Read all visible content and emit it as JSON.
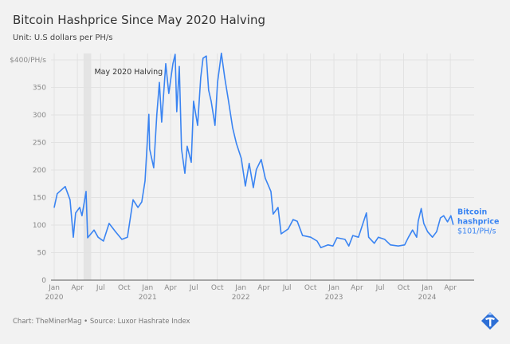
{
  "title": "Bitcoin Hashprice Since May 2020 Halving",
  "subtitle": "Unit: U.S dollars per PH/s",
  "footer": "Chart: TheMinerMag • Source: Luxor Hashrate Index",
  "colors": {
    "line": "#3a84f2",
    "background": "#f2f2f2",
    "grid": "#e2e2e2",
    "halving_band": "#e4e4e4"
  },
  "chart_data": {
    "type": "line",
    "title": "Bitcoin Hashprice Since May 2020 Halving",
    "ylabel": "",
    "xlabel": "",
    "ylim": [
      0,
      400
    ],
    "xlim": [
      "2020-01-01",
      "2024-05-01"
    ],
    "grid": true,
    "y_ticks": [
      {
        "value": 0,
        "label": "0"
      },
      {
        "value": 50,
        "label": "50"
      },
      {
        "value": 100,
        "label": "100"
      },
      {
        "value": 150,
        "label": "150"
      },
      {
        "value": 200,
        "label": "200"
      },
      {
        "value": 250,
        "label": "250"
      },
      {
        "value": 300,
        "label": "300"
      },
      {
        "value": 350,
        "label": "350"
      },
      {
        "value": 400,
        "label": "$400/PH/s"
      }
    ],
    "x_ticks": [
      {
        "date": "2020-01-01",
        "label": "Jan",
        "year": "2020"
      },
      {
        "date": "2020-04-01",
        "label": "Apr",
        "year": ""
      },
      {
        "date": "2020-07-01",
        "label": "Jul",
        "year": ""
      },
      {
        "date": "2020-10-01",
        "label": "Oct",
        "year": ""
      },
      {
        "date": "2021-01-01",
        "label": "Jan",
        "year": "2021"
      },
      {
        "date": "2021-04-01",
        "label": "Apr",
        "year": ""
      },
      {
        "date": "2021-07-01",
        "label": "Jul",
        "year": ""
      },
      {
        "date": "2021-10-01",
        "label": "Oct",
        "year": ""
      },
      {
        "date": "2022-01-01",
        "label": "Jan",
        "year": "2022"
      },
      {
        "date": "2022-04-01",
        "label": "Apr",
        "year": ""
      },
      {
        "date": "2022-07-01",
        "label": "Jul",
        "year": ""
      },
      {
        "date": "2022-10-01",
        "label": "Oct",
        "year": ""
      },
      {
        "date": "2023-01-01",
        "label": "Jan",
        "year": "2023"
      },
      {
        "date": "2023-04-01",
        "label": "Apr",
        "year": ""
      },
      {
        "date": "2023-07-01",
        "label": "Jul",
        "year": ""
      },
      {
        "date": "2023-10-01",
        "label": "Oct",
        "year": ""
      },
      {
        "date": "2024-01-01",
        "label": "Jan",
        "year": "2024"
      },
      {
        "date": "2024-04-01",
        "label": "Apr",
        "year": ""
      }
    ],
    "annotation": {
      "label": "May 2020 Halving",
      "start": "2020-04-25",
      "end": "2020-05-25"
    },
    "series": [
      {
        "name": "Bitcoin hashprice",
        "end_label": "$101/PH/s",
        "points": [
          [
            "2020-01-01",
            132
          ],
          [
            "2020-01-13",
            157
          ],
          [
            "2020-02-13",
            170
          ],
          [
            "2020-03-03",
            146
          ],
          [
            "2020-03-16",
            78
          ],
          [
            "2020-03-25",
            122
          ],
          [
            "2020-04-10",
            132
          ],
          [
            "2020-04-19",
            117
          ],
          [
            "2020-05-05",
            161
          ],
          [
            "2020-05-11",
            77
          ],
          [
            "2020-06-05",
            91
          ],
          [
            "2020-06-21",
            78
          ],
          [
            "2020-07-12",
            71
          ],
          [
            "2020-08-03",
            103
          ],
          [
            "2020-08-28",
            88
          ],
          [
            "2020-09-22",
            74
          ],
          [
            "2020-10-14",
            78
          ],
          [
            "2020-11-05",
            146
          ],
          [
            "2020-11-24",
            132
          ],
          [
            "2020-12-09",
            142
          ],
          [
            "2020-12-22",
            180
          ],
          [
            "2021-01-06",
            301
          ],
          [
            "2021-01-09",
            238
          ],
          [
            "2021-01-25",
            204
          ],
          [
            "2021-02-06",
            301
          ],
          [
            "2021-02-16",
            359
          ],
          [
            "2021-02-25",
            287
          ],
          [
            "2021-03-13",
            393
          ],
          [
            "2021-03-25",
            339
          ],
          [
            "2021-04-10",
            393
          ],
          [
            "2021-04-19",
            410
          ],
          [
            "2021-04-25",
            306
          ],
          [
            "2021-05-05",
            388
          ],
          [
            "2021-05-14",
            238
          ],
          [
            "2021-05-27",
            194
          ],
          [
            "2021-06-05",
            243
          ],
          [
            "2021-06-21",
            214
          ],
          [
            "2021-06-30",
            325
          ],
          [
            "2021-07-16",
            281
          ],
          [
            "2021-07-28",
            368
          ],
          [
            "2021-08-06",
            403
          ],
          [
            "2021-08-19",
            407
          ],
          [
            "2021-08-28",
            345
          ],
          [
            "2021-09-07",
            325
          ],
          [
            "2021-09-22",
            281
          ],
          [
            "2021-10-02",
            359
          ],
          [
            "2021-10-17",
            412
          ],
          [
            "2021-10-30",
            368
          ],
          [
            "2021-11-14",
            325
          ],
          [
            "2021-11-30",
            277
          ],
          [
            "2021-12-15",
            248
          ],
          [
            "2022-01-03",
            221
          ],
          [
            "2022-01-19",
            171
          ],
          [
            "2022-02-03",
            212
          ],
          [
            "2022-02-19",
            168
          ],
          [
            "2022-03-03",
            201
          ],
          [
            "2022-03-22",
            219
          ],
          [
            "2022-04-07",
            185
          ],
          [
            "2022-04-29",
            161
          ],
          [
            "2022-05-08",
            120
          ],
          [
            "2022-05-27",
            132
          ],
          [
            "2022-06-08",
            84
          ],
          [
            "2022-07-06",
            93
          ],
          [
            "2022-07-25",
            110
          ],
          [
            "2022-08-10",
            107
          ],
          [
            "2022-08-31",
            81
          ],
          [
            "2022-10-02",
            78
          ],
          [
            "2022-10-27",
            71
          ],
          [
            "2022-11-11",
            59
          ],
          [
            "2022-12-09",
            64
          ],
          [
            "2022-12-28",
            62
          ],
          [
            "2023-01-13",
            77
          ],
          [
            "2023-02-13",
            74
          ],
          [
            "2023-02-28",
            62
          ],
          [
            "2023-03-16",
            81
          ],
          [
            "2023-04-07",
            78
          ],
          [
            "2023-05-08",
            122
          ],
          [
            "2023-05-17",
            78
          ],
          [
            "2023-06-08",
            67
          ],
          [
            "2023-06-24",
            78
          ],
          [
            "2023-07-19",
            74
          ],
          [
            "2023-08-10",
            64
          ],
          [
            "2023-09-10",
            62
          ],
          [
            "2023-10-05",
            64
          ],
          [
            "2023-10-20",
            78
          ],
          [
            "2023-11-05",
            91
          ],
          [
            "2023-11-21",
            78
          ],
          [
            "2023-11-27",
            107
          ],
          [
            "2023-12-09",
            130
          ],
          [
            "2023-12-19",
            103
          ],
          [
            "2024-01-03",
            88
          ],
          [
            "2024-01-22",
            78
          ],
          [
            "2024-02-07",
            88
          ],
          [
            "2024-02-22",
            113
          ],
          [
            "2024-03-06",
            117
          ],
          [
            "2024-03-21",
            106
          ],
          [
            "2024-04-03",
            117
          ],
          [
            "2024-04-12",
            101
          ]
        ]
      }
    ]
  }
}
